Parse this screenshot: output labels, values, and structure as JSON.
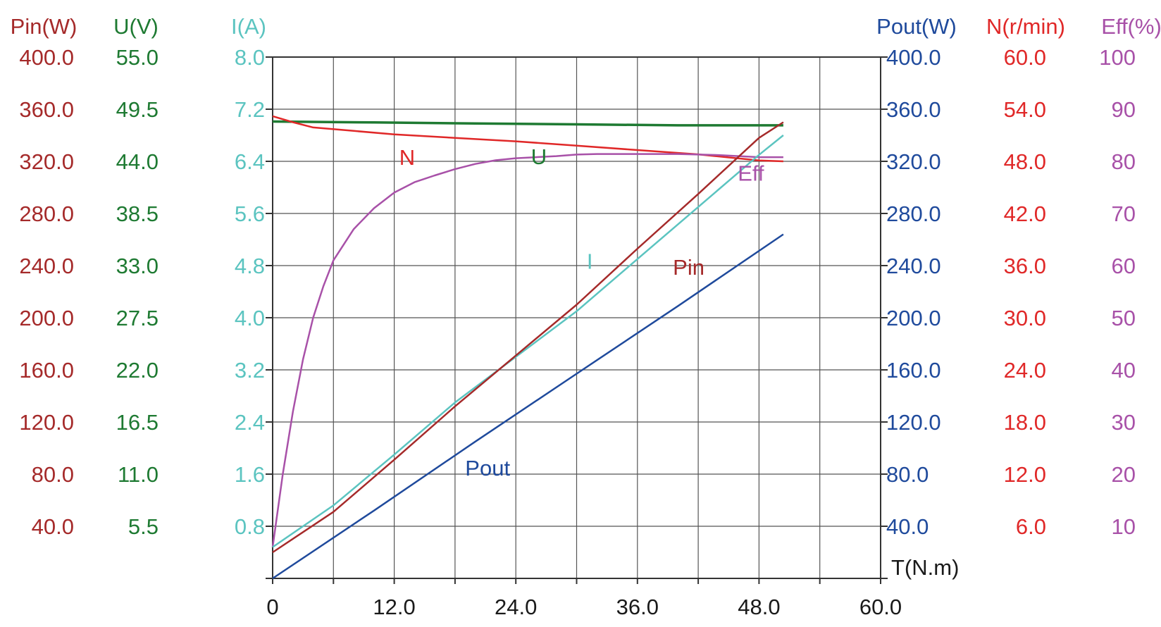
{
  "chart_data": {
    "type": "line",
    "xlabel": "T(N.m)",
    "x_ticks": [
      "0",
      "12.0",
      "24.0",
      "36.0",
      "48.0",
      "60.0"
    ],
    "xlim": [
      0,
      60
    ],
    "grid": true,
    "axes": [
      {
        "id": "pin",
        "side": "left",
        "title": "Pin(W)",
        "color": "#a52a2a",
        "range": [
          0,
          400
        ],
        "ticks": [
          "400.0",
          "360.0",
          "320.0",
          "280.0",
          "240.0",
          "200.0",
          "160.0",
          "120.0",
          "80.0",
          "40.0"
        ]
      },
      {
        "id": "u",
        "side": "left",
        "title": "U(V)",
        "color": "#1e7a32",
        "range": [
          0,
          55
        ],
        "ticks": [
          "55.0",
          "49.5",
          "44.0",
          "38.5",
          "33.0",
          "27.5",
          "22.0",
          "16.5",
          "11.0",
          "5.5"
        ]
      },
      {
        "id": "i",
        "side": "left",
        "title": "I(A)",
        "color": "#5bc4c0",
        "range": [
          0,
          8
        ],
        "ticks": [
          "8.0",
          "7.2",
          "6.4",
          "5.6",
          "4.8",
          "4.0",
          "3.2",
          "2.4",
          "1.6",
          "0.8"
        ]
      },
      {
        "id": "pout",
        "side": "right",
        "title": "Pout(W)",
        "color": "#1f4a9c",
        "range": [
          0,
          400
        ],
        "ticks": [
          "400.0",
          "360.0",
          "320.0",
          "280.0",
          "240.0",
          "200.0",
          "160.0",
          "120.0",
          "80.0",
          "40.0"
        ]
      },
      {
        "id": "n",
        "side": "right",
        "title": "N(r/min)",
        "color": "#e02828",
        "range": [
          0,
          60
        ],
        "ticks": [
          "60.0",
          "54.0",
          "48.0",
          "42.0",
          "36.0",
          "30.0",
          "24.0",
          "18.0",
          "12.0",
          "6.0"
        ]
      },
      {
        "id": "eff",
        "side": "right",
        "title": "Eff(%)",
        "color": "#a851a8",
        "range": [
          0,
          100
        ],
        "ticks": [
          "100",
          "90",
          "80",
          "70",
          "60",
          "50",
          "40",
          "30",
          "20",
          "10"
        ]
      }
    ],
    "series": [
      {
        "name": "U",
        "axis": "u",
        "color": "#1e7a32",
        "label_at": [
          25.5,
          43.7
        ],
        "points": [
          [
            0,
            48.2
          ],
          [
            10,
            48.1
          ],
          [
            20,
            48.0
          ],
          [
            30,
            47.9
          ],
          [
            40,
            47.8
          ],
          [
            50.4,
            47.8
          ]
        ]
      },
      {
        "name": "N",
        "axis": "n",
        "color": "#e02828",
        "label_at": [
          12.5,
          47.6
        ],
        "points": [
          [
            0,
            53.2
          ],
          [
            2,
            52.5
          ],
          [
            4,
            51.9
          ],
          [
            8,
            51.5
          ],
          [
            12,
            51.1
          ],
          [
            18,
            50.7
          ],
          [
            24,
            50.3
          ],
          [
            30,
            49.8
          ],
          [
            36,
            49.3
          ],
          [
            42,
            48.8
          ],
          [
            48,
            48.1
          ],
          [
            50.4,
            48.0
          ]
        ]
      },
      {
        "name": "Eff",
        "axis": "eff",
        "color": "#a851a8",
        "label_at": [
          45.9,
          76.3
        ],
        "points": [
          [
            0,
            6
          ],
          [
            1,
            20
          ],
          [
            2,
            32
          ],
          [
            3,
            42
          ],
          [
            4,
            50
          ],
          [
            5,
            56
          ],
          [
            6,
            61
          ],
          [
            8,
            67
          ],
          [
            10,
            71
          ],
          [
            12,
            74
          ],
          [
            14,
            76
          ],
          [
            16,
            77.3
          ],
          [
            18,
            78.5
          ],
          [
            20,
            79.5
          ],
          [
            22,
            80.2
          ],
          [
            24,
            80.6
          ],
          [
            26,
            80.8
          ],
          [
            28,
            81
          ],
          [
            30,
            81.3
          ],
          [
            32,
            81.4
          ],
          [
            36,
            81.4
          ],
          [
            40,
            81.4
          ],
          [
            44,
            81.2
          ],
          [
            48,
            80.8
          ],
          [
            50.4,
            80.8
          ]
        ]
      },
      {
        "name": "I",
        "axis": "i",
        "color": "#5bc4c0",
        "label_at": [
          31,
          4.75
        ],
        "points": [
          [
            0,
            0.48
          ],
          [
            6,
            1.12
          ],
          [
            12,
            1.9
          ],
          [
            18,
            2.7
          ],
          [
            24,
            3.4
          ],
          [
            30,
            4.1
          ],
          [
            36,
            4.9
          ],
          [
            42,
            5.7
          ],
          [
            48,
            6.5
          ],
          [
            50.4,
            6.8
          ]
        ]
      },
      {
        "name": "Pin",
        "axis": "pin",
        "color": "#a52a2a",
        "label_at": [
          39.5,
          233
        ],
        "points": [
          [
            0,
            20
          ],
          [
            6,
            51
          ],
          [
            12,
            91
          ],
          [
            18,
            132
          ],
          [
            24,
            171
          ],
          [
            30,
            210
          ],
          [
            36,
            253
          ],
          [
            42,
            295
          ],
          [
            48,
            338
          ],
          [
            50.4,
            350
          ]
        ]
      },
      {
        "name": "Pout",
        "axis": "pout",
        "color": "#1f4a9c",
        "label_at": [
          19,
          79
        ],
        "points": [
          [
            0,
            0
          ],
          [
            10,
            52
          ],
          [
            20,
            105
          ],
          [
            30,
            157
          ],
          [
            40,
            209
          ],
          [
            50.4,
            264
          ]
        ]
      }
    ]
  }
}
